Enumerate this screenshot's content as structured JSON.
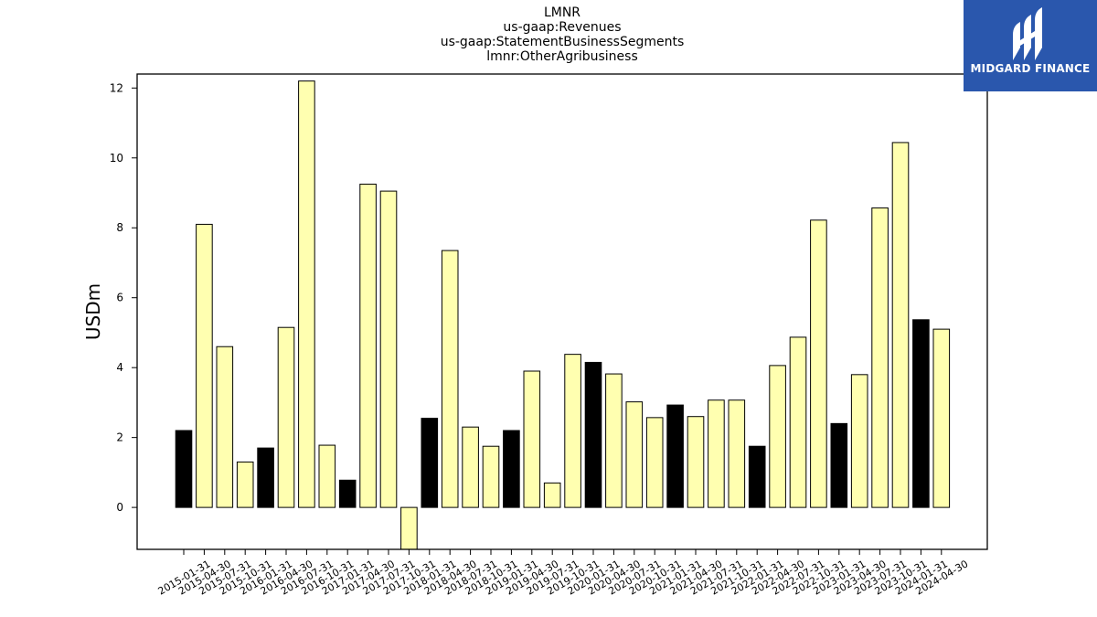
{
  "title_lines": [
    "LMNR",
    "us-gaap:Revenues",
    "us-gaap:StatementBusinessSegments",
    "lmnr:OtherAgribusiness"
  ],
  "logo": {
    "text": "MIDGARD FINANCE",
    "color": "#2a57ad"
  },
  "chart_data": {
    "type": "bar",
    "ylabel": "USDm",
    "xlabel": "",
    "ylim": [
      -1.2,
      12.4
    ],
    "yticks": [
      0,
      2,
      4,
      6,
      8,
      10,
      12
    ],
    "colors": {
      "Q4": "#000000",
      "other": "#ffffb0",
      "edge": "#000000"
    },
    "categories": [
      "2015-01-31",
      "2015-04-30",
      "2015-07-31",
      "2015-10-31",
      "2016-01-31",
      "2016-04-30",
      "2016-07-31",
      "2016-10-31",
      "2017-01-31",
      "2017-04-30",
      "2017-07-31",
      "2017-10-31",
      "2018-01-31",
      "2018-04-30",
      "2018-07-31",
      "2018-10-31",
      "2019-01-31",
      "2019-04-30",
      "2019-07-31",
      "2019-10-31",
      "2020-01-31",
      "2020-04-30",
      "2020-07-31",
      "2020-10-31",
      "2021-01-31",
      "2021-04-30",
      "2021-07-31",
      "2021-10-31",
      "2022-01-31",
      "2022-04-30",
      "2022-07-31",
      "2022-10-31",
      "2023-01-31",
      "2023-04-30",
      "2023-07-31",
      "2023-10-31",
      "2024-01-31",
      "2024-04-30"
    ],
    "values": [
      2.2,
      8.1,
      4.6,
      1.3,
      1.7,
      5.15,
      12.2,
      1.78,
      0.78,
      9.25,
      9.05,
      -1.3,
      2.55,
      7.35,
      2.3,
      1.75,
      2.2,
      3.9,
      0.7,
      4.38,
      4.15,
      3.82,
      3.02,
      2.57,
      2.93,
      2.6,
      3.07,
      3.07,
      1.75,
      4.06,
      4.87,
      8.22,
      2.4,
      3.8,
      8.57,
      10.44,
      5.37,
      5.1
    ],
    "fiscal_q4": [
      true,
      false,
      false,
      false,
      true,
      false,
      false,
      false,
      true,
      false,
      false,
      false,
      true,
      false,
      false,
      false,
      true,
      false,
      false,
      false,
      true,
      false,
      false,
      false,
      true,
      false,
      false,
      false,
      true,
      false,
      false,
      false,
      true,
      false,
      false,
      false,
      true,
      false
    ]
  }
}
